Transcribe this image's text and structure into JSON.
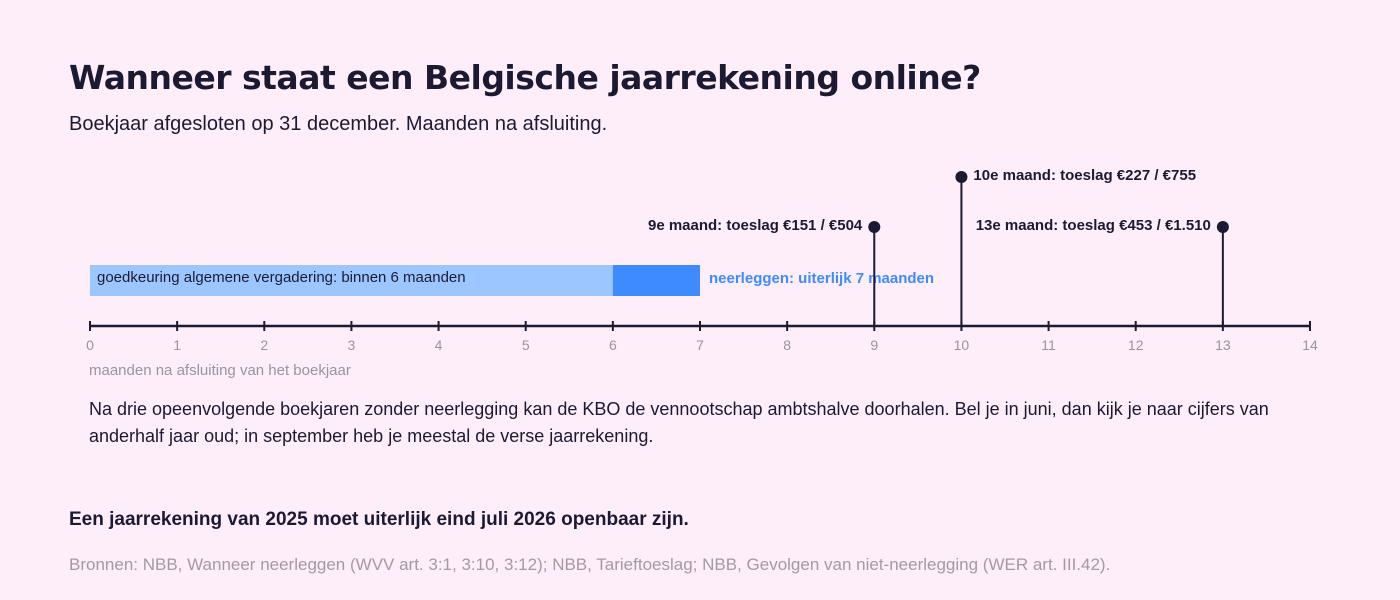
{
  "title": "Wanneer staat een Belgische jaarrekening online?",
  "subtitle": "Boekjaar afgesloten op 31 december. Maanden na afsluiting.",
  "chart_data": {
    "type": "timeline",
    "xlim": [
      0,
      14
    ],
    "ticks": [
      0,
      1,
      2,
      3,
      4,
      5,
      6,
      7,
      8,
      9,
      10,
      11,
      12,
      13,
      14
    ],
    "xlabel": "maanden na afsluiting van het boekjaar",
    "bars": [
      {
        "start": 0,
        "end": 6,
        "label": "goedkeuring algemene vergadering: binnen 6 maanden",
        "color": "#9cc6ff"
      },
      {
        "start": 6,
        "end": 7,
        "label": "neerleggen: uiterlijk 7 maanden",
        "color": "#3d8bff"
      }
    ],
    "markers": [
      {
        "x": 9,
        "label": "9e maand: toeslag €151 / €504",
        "level": "low",
        "label_side": "left"
      },
      {
        "x": 10,
        "label": "10e maand: toeslag €227 / €755",
        "level": "high",
        "label_side": "right"
      },
      {
        "x": 13,
        "label": "13e maand: toeslag €453 / €1.510",
        "level": "low",
        "label_side": "left"
      }
    ],
    "colors": {
      "axis": "#1c1a33",
      "tick_label": "#9a93a3",
      "accent": "#3d8bff",
      "bar_text": "#1c1a33"
    }
  },
  "note": "Na drie opeenvolgende boekjaren zonder neerlegging kan de KBO de vennootschap ambtshalve doorhalen. Bel je in juni, dan kijk je naar cijfers van anderhalf jaar oud; in september heb je meestal de verse jaarrekening.",
  "takeaway": "Een jaarrekening van 2025 moet uiterlijk eind juli 2026 openbaar zijn.",
  "source": "Bronnen: NBB, Wanneer neerleggen (WVV art. 3:1, 3:10, 3:12); NBB, Tarieftoeslag; NBB, Gevolgen van niet-neerlegging (WER art. III.42)."
}
